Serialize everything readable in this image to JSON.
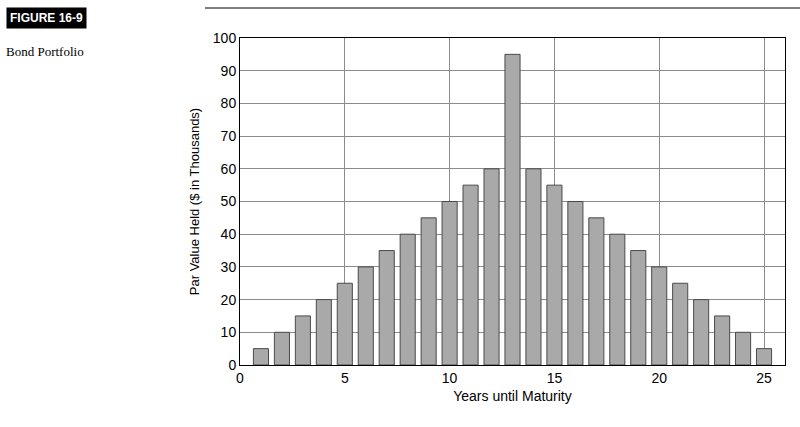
{
  "chart_data": {
    "type": "bar",
    "title": "FIGURE 16-9",
    "subtitle": "Bond Portfolio",
    "x_label": "Years until Maturity",
    "y_label": "Par Value Held ($ in Thousands)",
    "x": [
      1,
      2,
      3,
      4,
      5,
      6,
      7,
      8,
      9,
      10,
      11,
      12,
      13,
      14,
      15,
      16,
      17,
      18,
      19,
      20,
      21,
      22,
      23,
      24,
      25
    ],
    "values": [
      5,
      10,
      15,
      20,
      25,
      30,
      35,
      40,
      45,
      50,
      55,
      60,
      95,
      60,
      55,
      50,
      45,
      40,
      35,
      30,
      25,
      20,
      15,
      10,
      5
    ],
    "color": "#a9a9a9",
    "xlim": [
      0,
      26
    ],
    "xticks": [
      0,
      5,
      10,
      15,
      20,
      25
    ],
    "ylim": [
      0,
      100
    ],
    "yticks": [
      0,
      10,
      20,
      30,
      40,
      50,
      60,
      70,
      80,
      90,
      100
    ],
    "grid": true
  }
}
